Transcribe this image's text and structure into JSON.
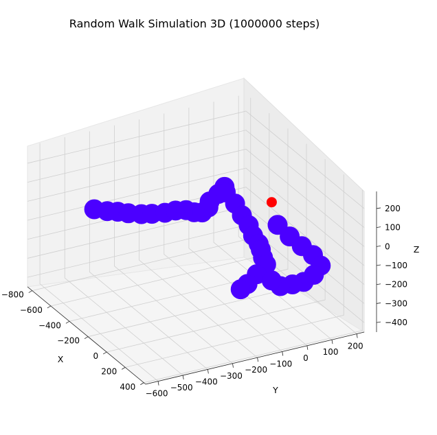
{
  "chart_data": {
    "type": "scatter",
    "projection": "3d",
    "title": "Random Walk Simulation 3D (1000000 steps)",
    "xlabel": "X",
    "ylabel": "Y",
    "zlabel": "Z",
    "x_ticks": [
      "−800",
      "−600",
      "−400",
      "−200",
      "0",
      "200",
      "400"
    ],
    "y_ticks": [
      "−600",
      "−500",
      "−400",
      "−300",
      "−200",
      "−100",
      "0",
      "100",
      "200"
    ],
    "z_ticks": [
      "200",
      "100",
      "0",
      "−100",
      "−200",
      "−300",
      "−400"
    ],
    "xlim": [
      -850,
      420
    ],
    "ylim": [
      -650,
      230
    ],
    "zlim": [
      -450,
      290
    ],
    "grid": true,
    "series": [
      {
        "marker_color": "#4b00ff",
        "points": [
          [
            -800,
            -400,
            -100
          ],
          [
            -740,
            -370,
            -95
          ],
          [
            -680,
            -350,
            -80
          ],
          [
            -620,
            -330,
            -70
          ],
          [
            -560,
            -300,
            -60
          ],
          [
            -500,
            -280,
            -40
          ],
          [
            -440,
            -250,
            -20
          ],
          [
            -380,
            -230,
            10
          ],
          [
            -320,
            -210,
            30
          ],
          [
            -260,
            -200,
            40
          ],
          [
            -200,
            -190,
            60
          ],
          [
            -160,
            -180,
            100
          ],
          [
            -120,
            -190,
            150
          ],
          [
            -80,
            -170,
            200
          ],
          [
            -40,
            -160,
            250
          ],
          [
            0,
            -170,
            240
          ],
          [
            20,
            -140,
            180
          ],
          [
            40,
            -120,
            120
          ],
          [
            60,
            -100,
            70
          ],
          [
            80,
            -90,
            20
          ],
          [
            60,
            -60,
            -40
          ],
          [
            30,
            -40,
            -90
          ],
          [
            0,
            -20,
            -150
          ],
          [
            -20,
            0,
            -200
          ],
          [
            -40,
            -30,
            -250
          ],
          [
            -60,
            -60,
            -300
          ],
          [
            -80,
            -80,
            -330
          ],
          [
            50,
            20,
            30
          ],
          [
            100,
            50,
            -20
          ],
          [
            150,
            80,
            -60
          ],
          [
            190,
            110,
            -100
          ],
          [
            220,
            130,
            -150
          ],
          [
            200,
            110,
            -200
          ],
          [
            170,
            80,
            -240
          ],
          [
            130,
            50,
            -260
          ],
          [
            80,
            20,
            -280
          ],
          [
            40,
            0,
            -260
          ]
        ]
      },
      {
        "marker_color": "#ff0000",
        "points": [
          [
            -40,
            30,
            110
          ]
        ]
      }
    ]
  }
}
